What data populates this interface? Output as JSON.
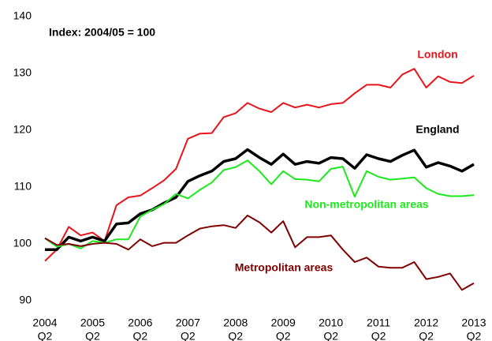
{
  "chart_data": {
    "type": "line",
    "annotations": [
      "Index: 2004/05 = 100"
    ],
    "categories": [
      "2004",
      null,
      null,
      null,
      "2005",
      null,
      null,
      null,
      "2006",
      null,
      null,
      null,
      "2007",
      null,
      null,
      null,
      "2008",
      null,
      null,
      null,
      "2009",
      null,
      null,
      null,
      "2010",
      null,
      null,
      null,
      "2011",
      null,
      null,
      null,
      "2012",
      null,
      null,
      null,
      "2013"
    ],
    "category_sublabels": [
      "Q2",
      null,
      null,
      null,
      "Q2",
      null,
      null,
      null,
      "Q2",
      null,
      null,
      null,
      "Q2",
      null,
      null,
      null,
      "Q2",
      null,
      null,
      null,
      "Q2",
      null,
      null,
      null,
      "Q2",
      null,
      null,
      null,
      "Q2",
      null,
      null,
      null,
      "Q2",
      null,
      null,
      null,
      "Q2"
    ],
    "series": [
      {
        "name": "London",
        "color": "#e8141b",
        "values": [
          97,
          99,
          103,
          101.5,
          102,
          100.5,
          106.8,
          108.2,
          108.5,
          109.8,
          111.2,
          113.2,
          118.5,
          119.4,
          119.5,
          122.3,
          123,
          124.8,
          123.8,
          123.2,
          124.8,
          124,
          124.5,
          124,
          124.6,
          124.8,
          126.5,
          128,
          128,
          127.5,
          129.8,
          130.8,
          127.5,
          129.5,
          128.5,
          128.3,
          129.6
        ]
      },
      {
        "name": "England",
        "color": "#000000",
        "values": [
          99,
          99,
          101.2,
          100.5,
          101.2,
          100.5,
          103.5,
          103.7,
          105.3,
          106,
          107.2,
          108.2,
          111,
          112,
          112.8,
          114.5,
          115,
          116.6,
          115.2,
          114,
          115.8,
          114,
          114.5,
          114.2,
          115.2,
          115,
          113.3,
          115.7,
          115,
          114.5,
          115.6,
          116.5,
          113.5,
          114.3,
          113.7,
          112.8,
          114
        ]
      },
      {
        "name": "Non-metropolitan areas",
        "color": "#1ee81e",
        "values": [
          101,
          99.5,
          100,
          99.2,
          100.5,
          100.2,
          100.8,
          100.8,
          104.8,
          106,
          107,
          108.8,
          108,
          109.5,
          110.8,
          113,
          113.5,
          114.7,
          112.8,
          110.5,
          112.8,
          111.4,
          111.3,
          111,
          113.2,
          113.6,
          108.3,
          112.8,
          111.8,
          111.3,
          111.5,
          111.7,
          109.8,
          108.8,
          108.4,
          108.4,
          108.6
        ]
      },
      {
        "name": "Metropolitan areas",
        "color": "#7f0000",
        "values": [
          101,
          99.8,
          100,
          99.6,
          100,
          100.2,
          100,
          99,
          100.8,
          99.6,
          100.2,
          100.2,
          101.5,
          102.7,
          103.1,
          103.3,
          102.8,
          105,
          103.8,
          102,
          104,
          99.4,
          101.2,
          101.2,
          101.5,
          99,
          96.8,
          97.6,
          96,
          95.8,
          95.8,
          96.8,
          93.8,
          94.2,
          94.8,
          91.9,
          93.1
        ]
      }
    ],
    "ylim": [
      90,
      140
    ],
    "yticks": [
      90,
      100,
      110,
      120,
      130,
      140
    ],
    "grid": false
  }
}
